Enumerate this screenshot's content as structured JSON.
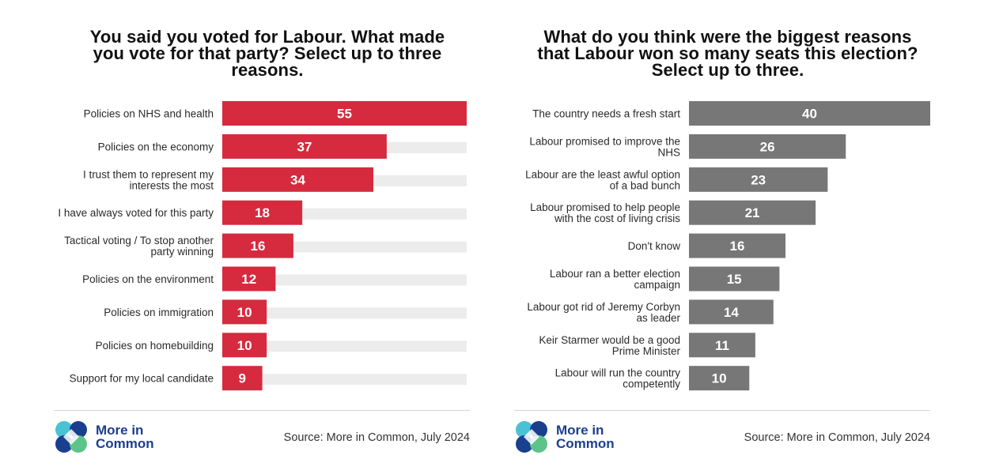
{
  "colors": {
    "left_bar": "#d62a3e",
    "right_bar": "#777777",
    "track": "#ececec",
    "logo_blue": "#1b3f8f",
    "logo_teal": "#49c2d6",
    "logo_green": "#5cc38a"
  },
  "logo": {
    "line1": "More in",
    "line2": "Common",
    "icon": "more-in-common-logo-icon"
  },
  "source": "Source: More in Common, July 2024",
  "chart_data": [
    {
      "type": "bar",
      "orientation": "horizontal",
      "title": "You said you voted for Labour. What made you vote for that party? Select up to three reasons.",
      "title_lines": [
        "You said you voted for Labour. What made",
        "you vote for that party? Select up to three",
        "reasons."
      ],
      "categories": [
        "Policies on NHS and health",
        "Policies on the economy",
        "I trust them to represent my interests the most",
        "I have always voted for this party",
        "Tactical voting / To stop another party winning",
        "Policies on the environment",
        "Policies on immigration",
        "Policies on homebuilding",
        "Support for my local candidate"
      ],
      "category_lines": [
        [
          "Policies on NHS and health"
        ],
        [
          "Policies on the economy"
        ],
        [
          "I trust them to represent my",
          "interests the most"
        ],
        [
          "I have always voted for this party"
        ],
        [
          "Tactical voting / To stop another",
          "party winning"
        ],
        [
          "Policies on the environment"
        ],
        [
          "Policies on immigration"
        ],
        [
          "Policies on homebuilding"
        ],
        [
          "Support for my local candidate"
        ]
      ],
      "values": [
        55,
        37,
        34,
        18,
        16,
        12,
        10,
        10,
        9
      ],
      "xlim": [
        0,
        55
      ],
      "background_track": true,
      "grid": false,
      "legend": "none"
    },
    {
      "type": "bar",
      "orientation": "horizontal",
      "title": "What do you think were the biggest reasons that Labour won so many seats this election? Select up to three.",
      "title_lines": [
        "What do you think were the biggest reasons",
        "that Labour won so many seats this election?",
        "Select up to three."
      ],
      "categories": [
        "The country needs a fresh start",
        "Labour promised to improve the NHS",
        "Labour are the least awful option of a bad bunch",
        "Labour promised to help people with the cost of living crisis",
        "Don't know",
        "Labour ran a better election campaign",
        "Labour got rid of Jeremy Corbyn as leader",
        "Keir Starmer would be a good Prime Minister",
        "Labour will run the country competently"
      ],
      "category_lines": [
        [
          "The country needs a fresh start"
        ],
        [
          "Labour promised to improve the",
          "NHS"
        ],
        [
          "Labour are the least awful option",
          "of a bad bunch"
        ],
        [
          "Labour promised to help people",
          "with the cost of living crisis"
        ],
        [
          "Don't know"
        ],
        [
          "Labour ran a better election",
          "campaign"
        ],
        [
          "Labour got rid of Jeremy Corbyn",
          "as leader"
        ],
        [
          "Keir Starmer would be a good",
          "Prime Minister"
        ],
        [
          "Labour will run the country",
          "competently"
        ]
      ],
      "values": [
        40,
        26,
        23,
        21,
        16,
        15,
        14,
        11,
        10
      ],
      "xlim": [
        0,
        40
      ],
      "background_track": false,
      "grid": false,
      "legend": "none"
    }
  ]
}
